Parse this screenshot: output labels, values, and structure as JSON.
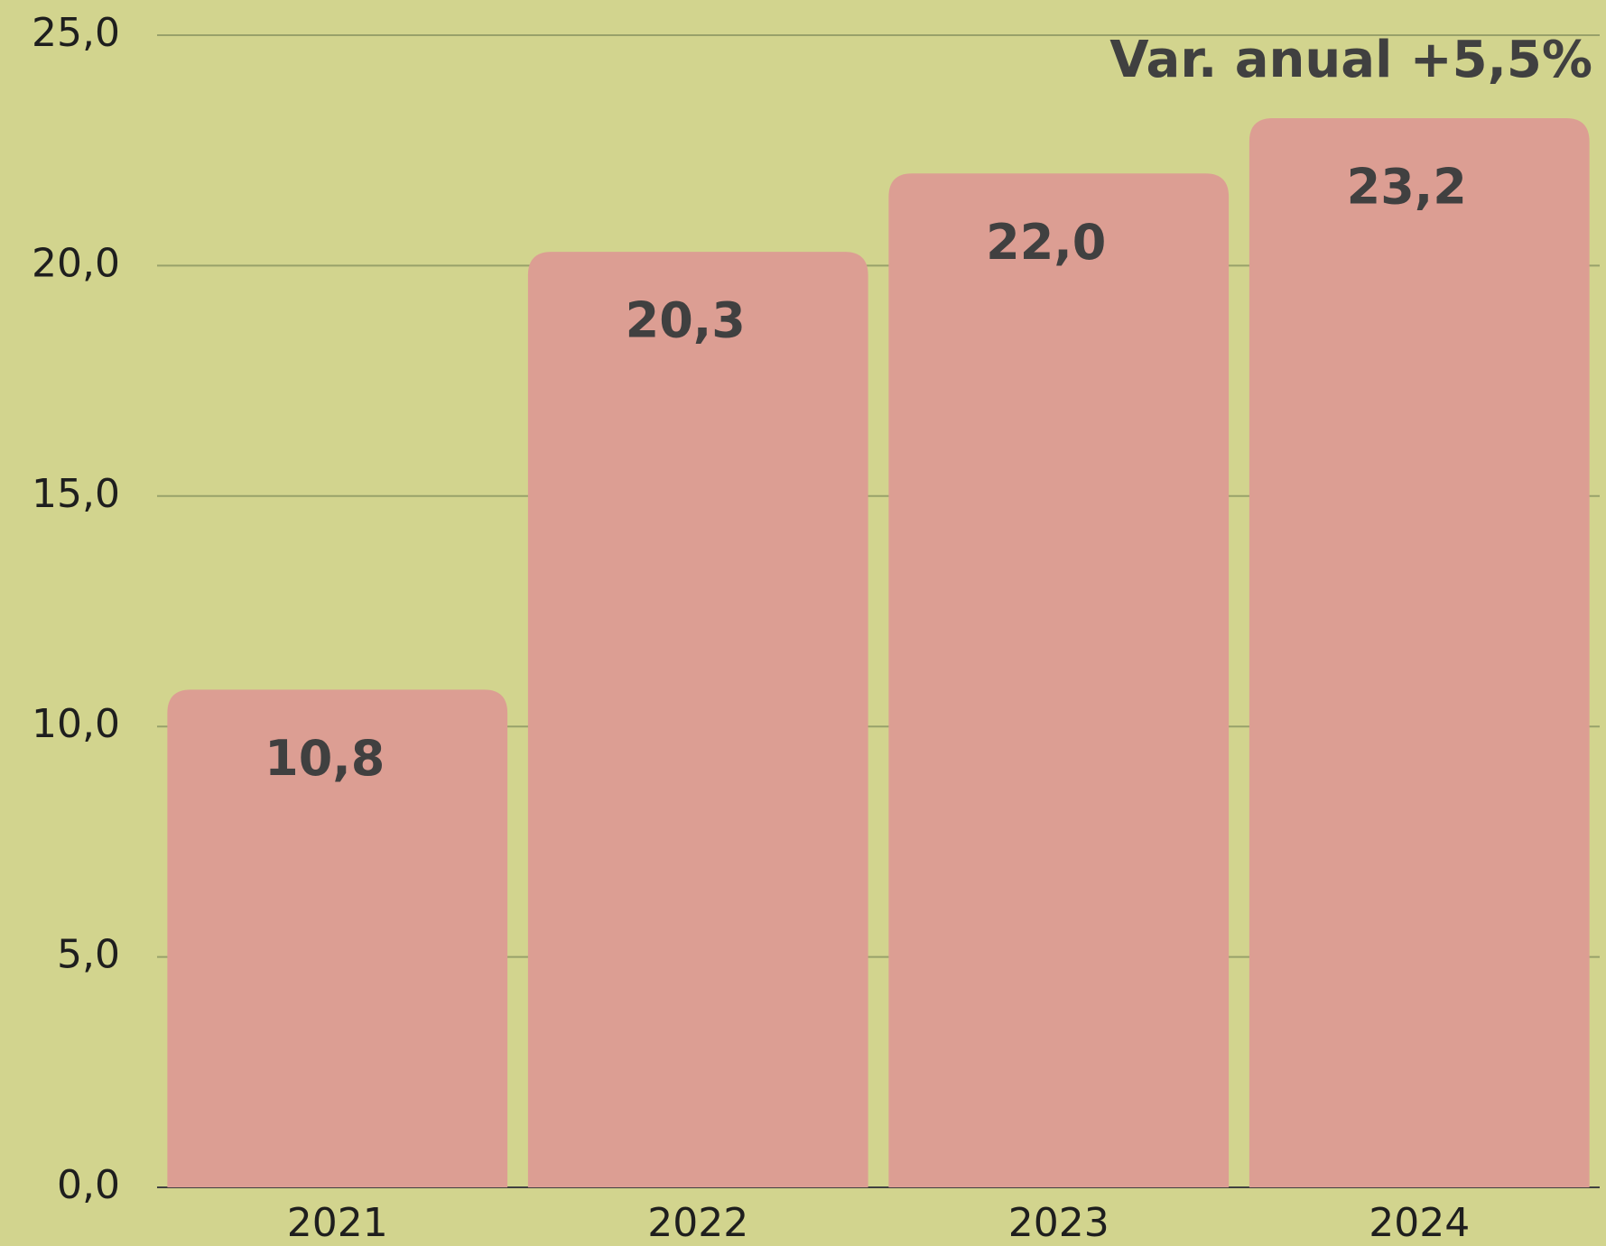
{
  "chart_data": {
    "type": "bar",
    "annotation": "Var. anual +5,5%",
    "categories": [
      "2021",
      "2022",
      "2023",
      "2024"
    ],
    "values": [
      10.8,
      20.3,
      22.0,
      23.2
    ],
    "value_labels": [
      "10,8",
      "20,3",
      "22,0",
      "23,2"
    ],
    "color": "#dc9e93",
    "ylim": [
      0,
      25
    ],
    "yticks": [
      {
        "value": 0,
        "label": "0,0"
      },
      {
        "value": 5,
        "label": "5,0"
      },
      {
        "value": 10,
        "label": "10,0"
      },
      {
        "value": 15,
        "label": "15,0"
      },
      {
        "value": 20,
        "label": "20,0"
      },
      {
        "value": 25,
        "label": "25,0"
      }
    ],
    "grid": true
  }
}
